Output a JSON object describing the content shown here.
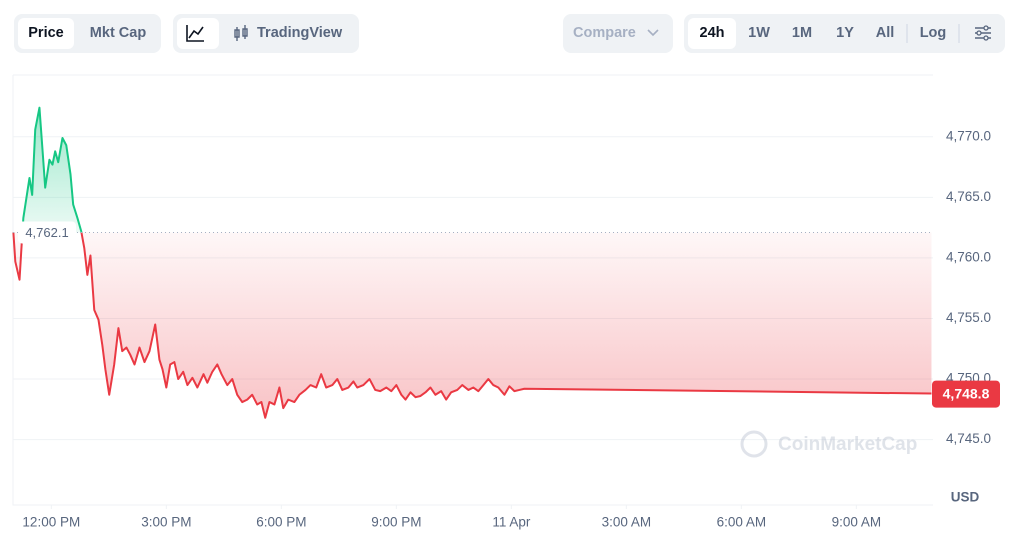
{
  "toolbar": {
    "views": [
      "Price",
      "Mkt Cap"
    ],
    "chart_mode": "TradingView",
    "compare": "Compare",
    "ranges": [
      "24h",
      "1W",
      "1M",
      "1Y",
      "All"
    ],
    "log": "Log"
  },
  "chart_data": {
    "type": "line",
    "watermark": "CoinMarketCap",
    "y_unit": "USD",
    "up_color": "#16c784",
    "down_color": "#ea3943",
    "grid": true,
    "baseline": {
      "value": 4762.1,
      "label": "4,762.1"
    },
    "last_price": {
      "value": 4748.8,
      "label": "4,748.8"
    },
    "xlim": [
      -1,
      23
    ],
    "xticks": [
      {
        "value": 0,
        "label": "12:00 PM"
      },
      {
        "value": 3,
        "label": "3:00 PM"
      },
      {
        "value": 6,
        "label": "6:00 PM"
      },
      {
        "value": 9,
        "label": "9:00 PM"
      },
      {
        "value": 12,
        "label": "11 Apr"
      },
      {
        "value": 15,
        "label": "3:00 AM"
      },
      {
        "value": 18,
        "label": "6:00 AM"
      },
      {
        "value": 21,
        "label": "9:00 AM"
      }
    ],
    "ylim": [
      4739.6,
      4775.1
    ],
    "yticks": [
      {
        "value": 4745,
        "label": "4,745.0"
      },
      {
        "value": 4750,
        "label": "4,750.0"
      },
      {
        "value": 4755,
        "label": "4,755.0"
      },
      {
        "value": 4760,
        "label": "4,760.0"
      },
      {
        "value": 4765,
        "label": "4,765.0"
      },
      {
        "value": 4770,
        "label": "4,770.0"
      }
    ],
    "x": [
      -0.99,
      -0.94,
      -0.83,
      -0.78,
      -0.73,
      -0.57,
      -0.5,
      -0.42,
      -0.31,
      -0.23,
      -0.16,
      -0.05,
      0.03,
      0.1,
      0.18,
      0.29,
      0.39,
      0.5,
      0.57,
      0.68,
      0.78,
      0.86,
      0.94,
      1.02,
      1.12,
      1.23,
      1.33,
      1.41,
      1.51,
      1.64,
      1.75,
      1.85,
      1.96,
      2.06,
      2.17,
      2.3,
      2.43,
      2.56,
      2.71,
      2.82,
      2.9,
      3.0,
      3.1,
      3.21,
      3.31,
      3.44,
      3.55,
      3.68,
      3.81,
      3.97,
      4.07,
      4.2,
      4.33,
      4.44,
      4.59,
      4.72,
      4.85,
      4.98,
      5.11,
      5.24,
      5.37,
      5.48,
      5.58,
      5.69,
      5.82,
      5.95,
      6.05,
      6.18,
      6.34,
      6.47,
      6.63,
      6.76,
      6.91,
      7.04,
      7.17,
      7.33,
      7.46,
      7.59,
      7.75,
      7.88,
      7.98,
      8.14,
      8.3,
      8.45,
      8.58,
      8.74,
      8.87,
      9.0,
      9.13,
      9.24,
      9.37,
      9.5,
      9.63,
      9.76,
      9.89,
      10.02,
      10.17,
      10.3,
      10.43,
      10.59,
      10.72,
      10.88,
      11.01,
      11.14,
      11.27,
      11.4,
      11.53,
      11.66,
      11.82,
      11.95,
      12.08,
      12.21,
      12.34,
      22.96
    ],
    "series": [
      {
        "name": "Price",
        "values": [
          4762.1,
          4759.7,
          4758.2,
          4760.8,
          4763.3,
          4766.6,
          4765.2,
          4770.6,
          4772.4,
          4768.9,
          4765.8,
          4768.1,
          4767.7,
          4768.8,
          4767.9,
          4769.9,
          4769.3,
          4766.9,
          4764.4,
          4763.3,
          4762.2,
          4760.8,
          4758.6,
          4760.2,
          4755.7,
          4754.9,
          4752.8,
          4750.8,
          4748.7,
          4751.2,
          4754.2,
          4752.3,
          4752.6,
          4752.0,
          4751.2,
          4752.6,
          4751.4,
          4752.3,
          4754.5,
          4751.6,
          4750.8,
          4749.3,
          4751.2,
          4751.4,
          4750.0,
          4750.6,
          4749.5,
          4750.1,
          4749.3,
          4750.4,
          4749.7,
          4750.6,
          4751.2,
          4750.4,
          4749.5,
          4750.0,
          4748.7,
          4748.1,
          4748.3,
          4748.7,
          4747.9,
          4748.1,
          4746.8,
          4748.1,
          4747.9,
          4749.3,
          4747.6,
          4748.3,
          4748.1,
          4748.7,
          4749.1,
          4749.5,
          4749.3,
          4750.4,
          4749.3,
          4749.5,
          4750.0,
          4749.1,
          4749.3,
          4749.8,
          4749.3,
          4749.5,
          4750.0,
          4749.1,
          4749.0,
          4749.3,
          4749.0,
          4749.5,
          4748.7,
          4748.3,
          4748.9,
          4748.5,
          4748.6,
          4748.9,
          4749.3,
          4748.7,
          4749.0,
          4748.3,
          4748.9,
          4749.1,
          4749.5,
          4749.1,
          4749.3,
          4749.0,
          4749.5,
          4750.0,
          4749.5,
          4749.3,
          4748.7,
          4749.4,
          4749.0,
          4749.1,
          4749.2,
          4748.8
        ]
      }
    ]
  }
}
